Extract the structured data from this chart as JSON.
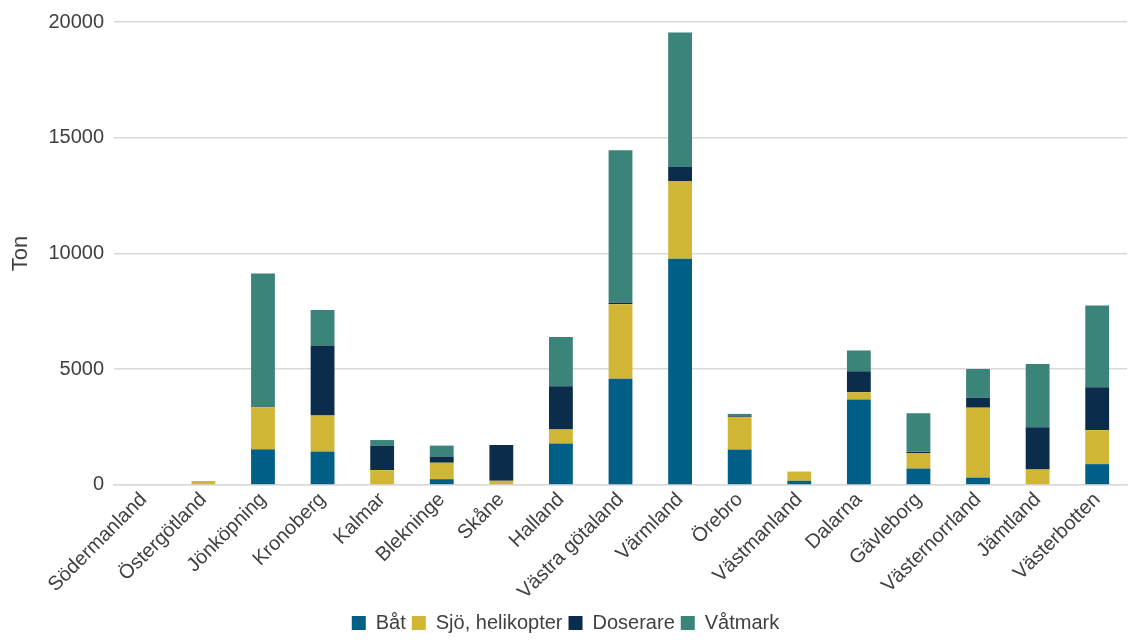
{
  "chart_data": {
    "type": "bar",
    "stacked": true,
    "ylabel": "Ton",
    "categories": [
      "Södermanland",
      "Östergötland",
      "Jönköpning",
      "Kronoberg",
      "Kalmar",
      "Blekninge",
      "Skåne",
      "Halland",
      "Västra götaland",
      "Värmland",
      "Örebro",
      "Västmanland",
      "Dalarna",
      "Gävleborg",
      "Västernorrland",
      "Jämtland",
      "Västerbotten"
    ],
    "series": [
      {
        "name": "Båt",
        "color": "#005f87",
        "values": [
          0,
          0,
          1540,
          1440,
          0,
          250,
          0,
          1790,
          4590,
          9770,
          1530,
          180,
          3690,
          710,
          320,
          0,
          900
        ]
      },
      {
        "name": "Sjö, helikopter",
        "color": "#d1b636",
        "values": [
          0,
          170,
          1820,
          1560,
          640,
          710,
          180,
          610,
          3220,
          3360,
          1410,
          400,
          320,
          670,
          3020,
          670,
          1470
        ]
      },
      {
        "name": "Doserare",
        "color": "#0b2c4b",
        "values": [
          0,
          0,
          30,
          3020,
          1060,
          270,
          1550,
          1860,
          70,
          620,
          30,
          0,
          900,
          50,
          430,
          1820,
          1850
        ]
      },
      {
        "name": "Våtmark",
        "color": "#3b8479",
        "values": [
          0,
          0,
          5740,
          1540,
          240,
          470,
          0,
          2130,
          6580,
          5800,
          100,
          0,
          900,
          1670,
          1240,
          2740,
          3530
        ]
      }
    ],
    "ylim": [
      0,
      20000
    ],
    "yticks": [
      0,
      5000,
      10000,
      15000,
      20000
    ],
    "grid": "y",
    "legend": "bottom"
  }
}
